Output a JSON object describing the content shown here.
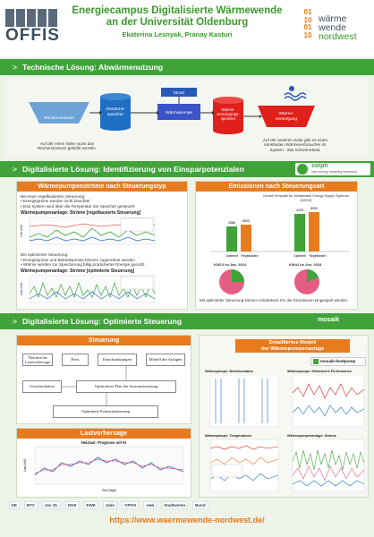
{
  "header": {
    "title_line1": "Energiecampus Digitalisierte Wärmewende",
    "title_line2": "an der Universität Oldenburg",
    "authors": "Ekaterina Lesnyak, Pranay Kasturi",
    "offis_logo": "OFFIS",
    "ww_logo_digits": "01\n10\n01\n10",
    "ww_logo_line1": "wärme",
    "ww_logo_line2": "wende",
    "ww_logo_line3": "nordwest"
  },
  "section1": {
    "title": "Technische Lösung: Abwärmenutzung",
    "labels": {
      "rechenzentrum": "Rechenzentrum",
      "abwaerme": "Abwärme-\nspeicher",
      "waermepumpe": "Wärmepumpe",
      "strom": "Strom",
      "waermeversorgung_speicher": "Wärme-\nversorgungs-\nspeicher",
      "waermeversorgung": "Wärme-\nversorgung"
    },
    "note_left": "Auf der einen Seite muss das Rechenzentrum gekühlt werden.",
    "note_right": "Auf der anderen Seite gibt es einen konstanten Wärmeverbraucher im System - das Schwimmbad."
  },
  "section2": {
    "title": "Digitalisierte Lösung: Identifizierung von Einsparpotenzialen",
    "solph_logo": "solph",
    "solph_sub": "open energy modelling framework",
    "left_panel": {
      "header": "Wärmepumpenströme nach Steuerungstyp",
      "rule_intro": "Bei einer regelbasierten Steuerung:",
      "rule_b1": "Energiepreise werden nicht beachtet",
      "rule_b2": "Das System wird über die Temperatur der Speicher gesteuert",
      "chart1_title": "Wärmepumpenanlage: Ströme [regelbasierte Steuerung]",
      "opt_intro": "Bei optimierter Steuerung:",
      "opt_b1": "Energiepreise und Betriebspreise können zugeordnet werden",
      "opt_b2": "Wärme werden zur Speicherung billig produzierter Energie genutzt",
      "chart2_title": "Wärmepumpenanlage: Ströme [optimierte Steuerung]",
      "ylabel": "Last (kW)",
      "xlabel": "Zeit (Tag)"
    },
    "right_panel": {
      "header": "Emissionen nach Steuerungsart",
      "model_note": "Modell Template für Sustainable Energy Supply Systems (SESS)",
      "bar_labels_a": [
        "236kt",
        "8000"
      ],
      "bar_labels_b": [
        "4478",
        "8000"
      ],
      "group_a": "Optimiert",
      "group_b": "Regelbasiert",
      "pie1_title": "KW14 im Jan. 2024",
      "pie2_title": "KW44 im Jun. 2024",
      "summary": "Mit optimierter Steuerung können mindestens 2% der Emissionen eingespart werden."
    }
  },
  "section3": {
    "title": "Digitalisierte Lösung: Optimierte Steuerung",
    "mosaik_logo": "mosaik",
    "left_header": "Steuerung",
    "boxes": {
      "b1": "Thermische Lastvorhersage",
      "b2": "Preis",
      "b3": "Einschränkungen",
      "b4": "Modell der Anlagen",
      "b5": "Unsicherheiten",
      "b6": "Optimierter Plan der Systemsteuerung",
      "b7": "Optimierte Echtzeitsteuerung"
    },
    "forecast_header": "Lastvorhersage",
    "forecast_title": "Heizlast: Prognose mit KI",
    "forecast_xlabel": "Zeit (Tage)",
    "forecast_ylabel": "Last (kW)",
    "right_header": "Detailliertes Modell\nder Wärmepumpenanlage",
    "mosaik_hp": "mosaik-heatpump",
    "chart_titles": [
      "Wärmepumpe: Betriebsstatus",
      "Wärmepumpe: Elektrische Performance",
      "Wärmepumpe: Temperaturen",
      "Wärmepumpenanlage: Ströme"
    ]
  },
  "footer": {
    "url": "https://www.waermewende-nordwest.de/",
    "logos": [
      "EE",
      "BTC",
      "Uni OL",
      "DKE",
      "EWE",
      "Jade",
      "OFFIS",
      "swb",
      "Stadtwerke",
      "Bund"
    ]
  },
  "colors": {
    "green": "#3fa33a",
    "orange": "#e87b1e",
    "blue": "#1e6fc4",
    "red": "#e0201b",
    "pink": "#e35d84"
  }
}
